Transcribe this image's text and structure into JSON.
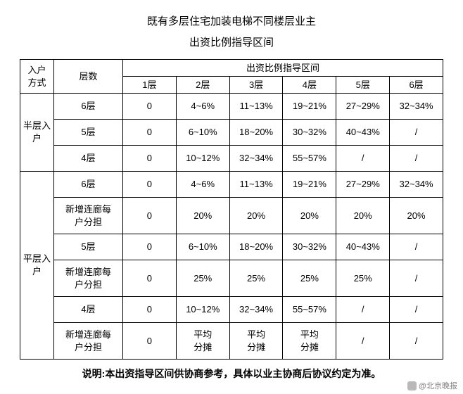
{
  "title_line1": "既有多层住宅加装电梯不同楼层业主",
  "title_line2": "出资比例指导区间",
  "head": {
    "method": "入户方式",
    "floors": "层数",
    "range": "出资比例指导区间",
    "cols": [
      "1层",
      "2层",
      "3层",
      "4层",
      "5层",
      "6层"
    ]
  },
  "half": {
    "label": "半层入户",
    "rows": [
      {
        "f": "6层",
        "v": [
          "0",
          "4~6%",
          "11~13%",
          "19~21%",
          "27~29%",
          "32~34%"
        ]
      },
      {
        "f": "5层",
        "v": [
          "0",
          "6~10%",
          "18~20%",
          "30~32%",
          "40~43%",
          "/"
        ]
      },
      {
        "f": "4层",
        "v": [
          "0",
          "10~12%",
          "32~34%",
          "55~57%",
          "/",
          "/"
        ]
      }
    ]
  },
  "flat": {
    "label": "平层入户",
    "corridor_a": "新增连廊每",
    "corridor_b": "户分担",
    "rows": [
      {
        "f": "6层",
        "v": [
          "0",
          "4~6%",
          "11~13%",
          "19~21%",
          "27~29%",
          "32~34%"
        ]
      },
      {
        "c": true,
        "v": [
          "0",
          "20%",
          "20%",
          "20%",
          "20%",
          "20%"
        ]
      },
      {
        "f": "5层",
        "v": [
          "0",
          "6~10%",
          "18~20%",
          "30~32%",
          "40~43%",
          "/"
        ]
      },
      {
        "c": true,
        "v": [
          "0",
          "25%",
          "25%",
          "25%",
          "25%",
          "/"
        ]
      },
      {
        "f": "4层",
        "v": [
          "0",
          "10~12%",
          "32~34%",
          "55~57%",
          "/",
          "/"
        ]
      },
      {
        "c": true,
        "avg": true,
        "v": [
          "0",
          "平均\n分摊",
          "平均\n分摊",
          "平均\n分摊",
          "/",
          "/"
        ]
      }
    ]
  },
  "note": "说明:本出资指导区间供协商参考，具体以业主协商后协议约定为准。",
  "watermark": "@北京晚报"
}
